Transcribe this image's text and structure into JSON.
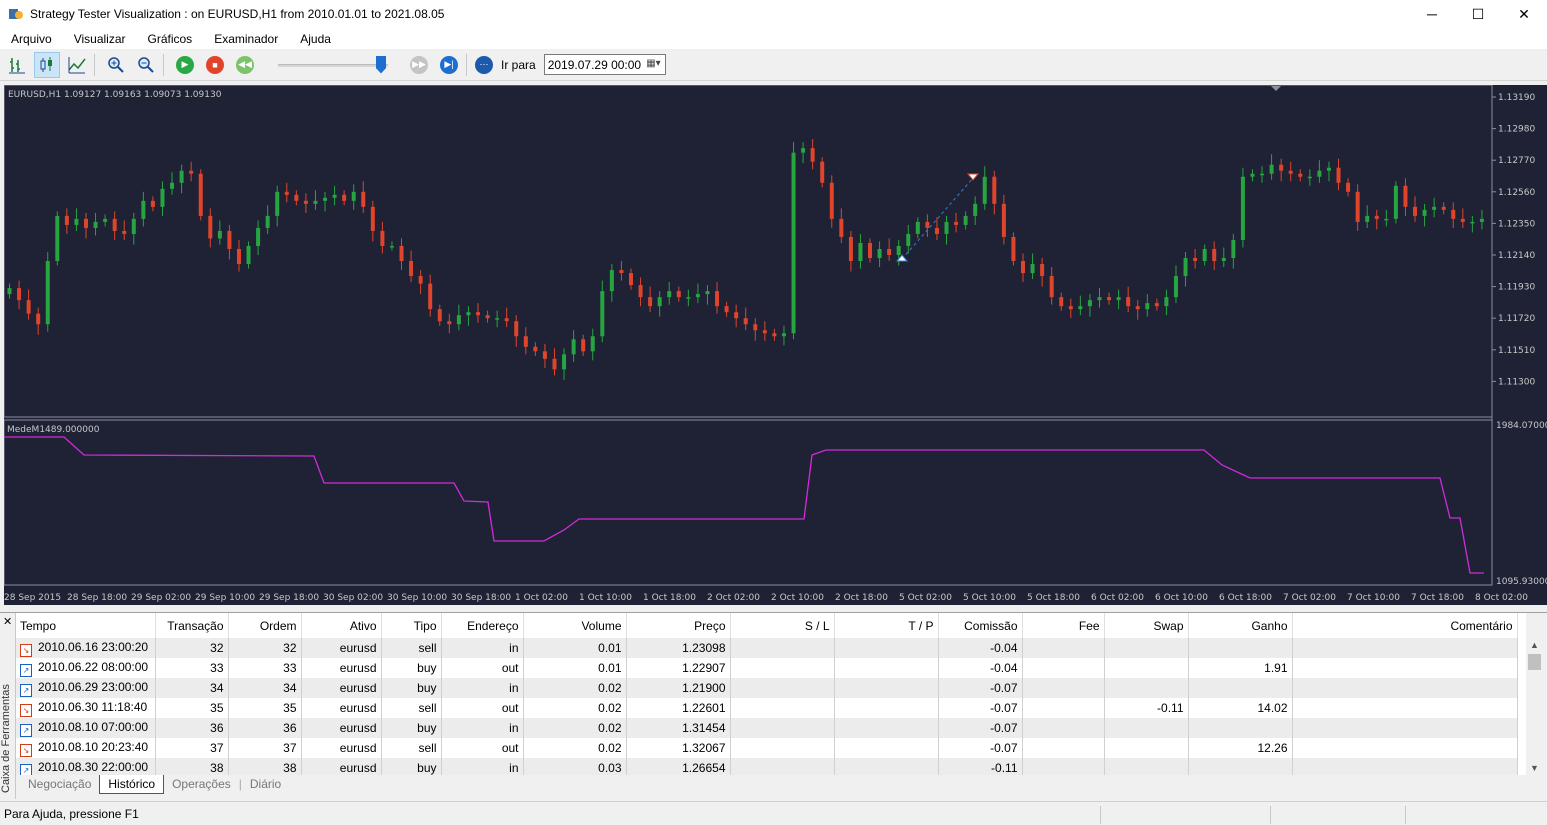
{
  "window": {
    "title": "Strategy Tester Visualization :  on EURUSD,H1 from 2010.01.01 to 2021.08.05",
    "minimize": "─",
    "maximize": "☐",
    "close": "✕"
  },
  "menu": [
    "Arquivo",
    "Visualizar",
    "Gráficos",
    "Examinador",
    "Ajuda"
  ],
  "toolbar": {
    "goto_label": "Ir para",
    "goto_value": "2019.07.29 00:00",
    "speed_fraction": 0.98
  },
  "chart": {
    "symbol_info": "EURUSD,H1  1.09127 1.09163 1.09073 1.09130",
    "indicator_label": "MedeM1489.000000",
    "price_axis": [
      "1.13190",
      "1.12980",
      "1.12770",
      "1.12560",
      "1.12350",
      "1.12140",
      "1.11930",
      "1.11720",
      "1.11510",
      "1.11300"
    ],
    "indicator_axis": [
      "1984.07000",
      "1095.93000"
    ],
    "time_axis": [
      "28 Sep 2015",
      "28 Sep 18:00",
      "29 Sep 02:00",
      "29 Sep 10:00",
      "29 Sep 18:00",
      "30 Sep 02:00",
      "30 Sep 10:00",
      "30 Sep 18:00",
      "1 Oct 02:00",
      "1 Oct 10:00",
      "1 Oct 18:00",
      "2 Oct 02:00",
      "2 Oct 10:00",
      "2 Oct 18:00",
      "5 Oct 02:00",
      "5 Oct 10:00",
      "5 Oct 18:00",
      "6 Oct 02:00",
      "6 Oct 10:00",
      "6 Oct 18:00",
      "7 Oct 02:00",
      "7 Oct 10:00",
      "7 Oct 18:00",
      "8 Oct 02:00"
    ],
    "colors": {
      "background": "#1e2234",
      "bull": "#26a541",
      "bear": "#e0452c",
      "indicator": "#d12bd9",
      "axis_text": "#c8c8c8"
    }
  },
  "history": {
    "columns": [
      "Tempo",
      "Transação",
      "Ordem",
      "Ativo",
      "Tipo",
      "Endereço",
      "Volume",
      "Preço",
      "S / L",
      "T / P",
      "Comissão",
      "Fee",
      "Swap",
      "Ganho",
      "Comentário"
    ],
    "rows": [
      [
        "2010.06.16 23:00:20",
        "32",
        "32",
        "eurusd",
        "sell",
        "in",
        "0.01",
        "1.23098",
        "",
        "",
        "-0.04",
        "",
        "",
        "",
        ""
      ],
      [
        "2010.06.22 08:00:00",
        "33",
        "33",
        "eurusd",
        "buy",
        "out",
        "0.01",
        "1.22907",
        "",
        "",
        "-0.04",
        "",
        "",
        "1.91",
        ""
      ],
      [
        "2010.06.29 23:00:00",
        "34",
        "34",
        "eurusd",
        "buy",
        "in",
        "0.02",
        "1.21900",
        "",
        "",
        "-0.07",
        "",
        "",
        "",
        ""
      ],
      [
        "2010.06.30 11:18:40",
        "35",
        "35",
        "eurusd",
        "sell",
        "out",
        "0.02",
        "1.22601",
        "",
        "",
        "-0.07",
        "",
        "-0.11",
        "14.02",
        ""
      ],
      [
        "2010.08.10 07:00:00",
        "36",
        "36",
        "eurusd",
        "buy",
        "in",
        "0.02",
        "1.31454",
        "",
        "",
        "-0.07",
        "",
        "",
        "",
        ""
      ],
      [
        "2010.08.10 20:23:40",
        "37",
        "37",
        "eurusd",
        "sell",
        "out",
        "0.02",
        "1.32067",
        "",
        "",
        "-0.07",
        "",
        "",
        "12.26",
        ""
      ],
      [
        "2010.08.30 22:00:00",
        "38",
        "38",
        "eurusd",
        "buy",
        "in",
        "0.03",
        "1.26654",
        "",
        "",
        "-0.11",
        "",
        "",
        "",
        ""
      ]
    ]
  },
  "toolbox": {
    "side_label": "Caixa de Ferramentas",
    "close": "✕",
    "tabs": [
      "Negociação",
      "Histórico",
      "Operações",
      "Diário"
    ],
    "active_tab": 1
  },
  "status": {
    "text": "Para Ajuda, pressione F1"
  }
}
